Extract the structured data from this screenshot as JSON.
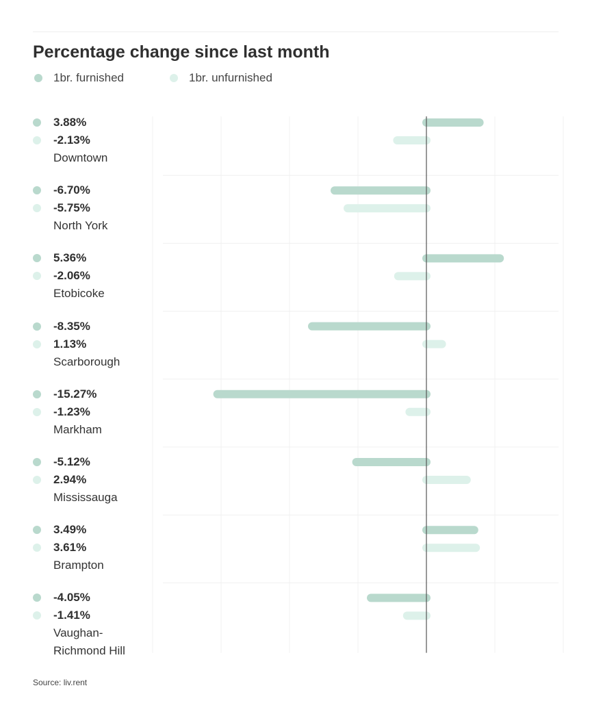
{
  "chart_data": {
    "type": "bar",
    "orientation": "horizontal",
    "title": "Percentage change since last month",
    "categories": [
      "Downtown",
      "North York",
      "Etobicoke",
      "Scarborough",
      "Markham",
      "Mississauga",
      "Brampton",
      "Vaughan-Richmond Hill"
    ],
    "category_display": [
      [
        "Downtown"
      ],
      [
        "North York"
      ],
      [
        "Etobicoke"
      ],
      [
        "Scarborough"
      ],
      [
        "Markham"
      ],
      [
        "Mississauga"
      ],
      [
        "Brampton"
      ],
      [
        "Vaughan-",
        "Richmond Hill"
      ]
    ],
    "series": [
      {
        "name": "1br. furnished",
        "color": "#b9d9cd",
        "values": [
          3.88,
          -6.7,
          5.36,
          -8.35,
          -15.27,
          -5.12,
          3.49,
          -4.05
        ],
        "labels": [
          "3.88%",
          "-6.70%",
          "5.36%",
          "-8.35%",
          "-15.27%",
          "-5.12%",
          "3.49%",
          "-4.05%"
        ]
      },
      {
        "name": "1br. unfurnished",
        "color": "#ddf1ea",
        "values": [
          -2.13,
          -5.75,
          -2.06,
          1.13,
          -1.23,
          2.94,
          3.61,
          -1.41
        ],
        "labels": [
          "-2.13%",
          "-5.75%",
          "-2.06%",
          "1.13%",
          "-1.23%",
          "2.94%",
          "3.61%",
          "-1.41%"
        ]
      }
    ],
    "xlim": [
      -20,
      10
    ],
    "xlabel": "",
    "ylabel": "",
    "grid": true,
    "legend_position": "top-left"
  },
  "source": "Source: liv.rent"
}
